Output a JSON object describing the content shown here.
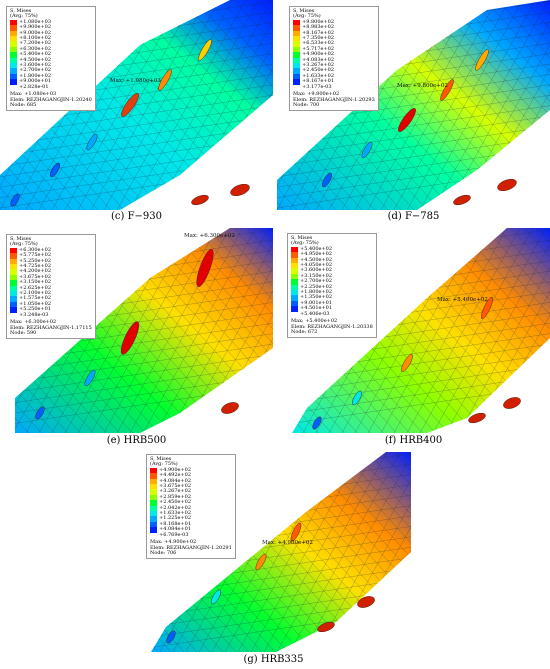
{
  "panels": [
    {
      "id": "c",
      "caption": "(c) F−930",
      "legend": {
        "title": "S, Mises",
        "subtitle": "(Avg: 75%)",
        "values": [
          "+1.080e+03",
          "+9.900e+02",
          "+9.000e+02",
          "+8.100e+02",
          "+7.200e+02",
          "+6.300e+02",
          "+5.400e+02",
          "+4.500e+02",
          "+3.600e+02",
          "+2.700e+02",
          "+1.800e+02",
          "+9.000e+01",
          "+2.828e-01"
        ],
        "max": "Max: +1.080e+03",
        "elem": "Elem: REZHAGANGJIN-1.20240",
        "node": "Node: 685"
      },
      "max_label": "Max: +1.080e+03"
    },
    {
      "id": "d",
      "caption": "(d) F−785",
      "legend": {
        "title": "S, Mises",
        "subtitle": "(Avg: 75%)",
        "values": [
          "+9.800e+02",
          "+8.983e+02",
          "+8.167e+02",
          "+7.350e+02",
          "+6.533e+02",
          "+5.717e+02",
          "+4.900e+02",
          "+4.083e+02",
          "+3.267e+02",
          "+2.450e+02",
          "+1.633e+02",
          "+8.167e+01",
          "+3.177e-03"
        ],
        "max": "Max: +9.800e+02",
        "elem": "Elem: REZHAGANGJIN-1.20293",
        "node": "Node: 700"
      },
      "max_label": "Max: +9.800e+02"
    },
    {
      "id": "e",
      "caption": "(e) HRB500",
      "legend": {
        "title": "S, Mises",
        "subtitle": "(Avg: 75%)",
        "values": [
          "+6.300e+02",
          "+5.775e+02",
          "+5.250e+02",
          "+4.725e+02",
          "+4.200e+02",
          "+3.675e+02",
          "+3.150e+02",
          "+2.625e+02",
          "+2.100e+02",
          "+1.575e+02",
          "+1.050e+02",
          "+5.250e+01",
          "+3.248e-03"
        ],
        "max": "Max: +6.300e+02",
        "elem": "Elem: REZHAGANGJIN-1.17115",
        "node": "Node: 590"
      },
      "max_label": "Max: +6.300e+02"
    },
    {
      "id": "f",
      "caption": "(f) HRB400",
      "legend": {
        "title": "S, Mises",
        "subtitle": "(Avg: 75%)",
        "values": [
          "+5.400e+02",
          "+4.950e+02",
          "+4.500e+02",
          "+4.050e+02",
          "+3.600e+02",
          "+3.150e+02",
          "+2.700e+02",
          "+2.250e+02",
          "+1.800e+02",
          "+1.350e+02",
          "+9.001e+01",
          "+4.501e+01",
          "+5.406e-03"
        ],
        "max": "Max: +5.400e+02",
        "elem": "Elem: REZHAGANGJIN-1.20338",
        "node": "Node: 672"
      },
      "max_label": "Max: +5.400e+02"
    },
    {
      "id": "g",
      "caption": "(g) HRB335",
      "legend": {
        "title": "S, Mises",
        "subtitle": "(Avg: 75%)",
        "values": [
          "+4.900e+02",
          "+4.492e+02",
          "+4.084e+02",
          "+3.675e+02",
          "+3.267e+02",
          "+2.859e+02",
          "+2.450e+02",
          "+2.042e+02",
          "+1.633e+02",
          "+1.225e+02",
          "+8.168e+01",
          "+4.084e+01",
          "+6.769e-03"
        ],
        "max": "Max: +4.900e+02",
        "elem": "Elem: REZHAGANGJIN-1.20291",
        "node": "Node: 706"
      },
      "max_label": "Max: +4.900e+02"
    }
  ],
  "colors": {
    "contour": [
      "#ff0000",
      "#ff5a00",
      "#ffaa00",
      "#ffe000",
      "#d8ff00",
      "#8cff00",
      "#00ff30",
      "#00ffa0",
      "#00e8e8",
      "#00a8ff",
      "#0060ff",
      "#0020ff",
      "#0000c0"
    ]
  }
}
